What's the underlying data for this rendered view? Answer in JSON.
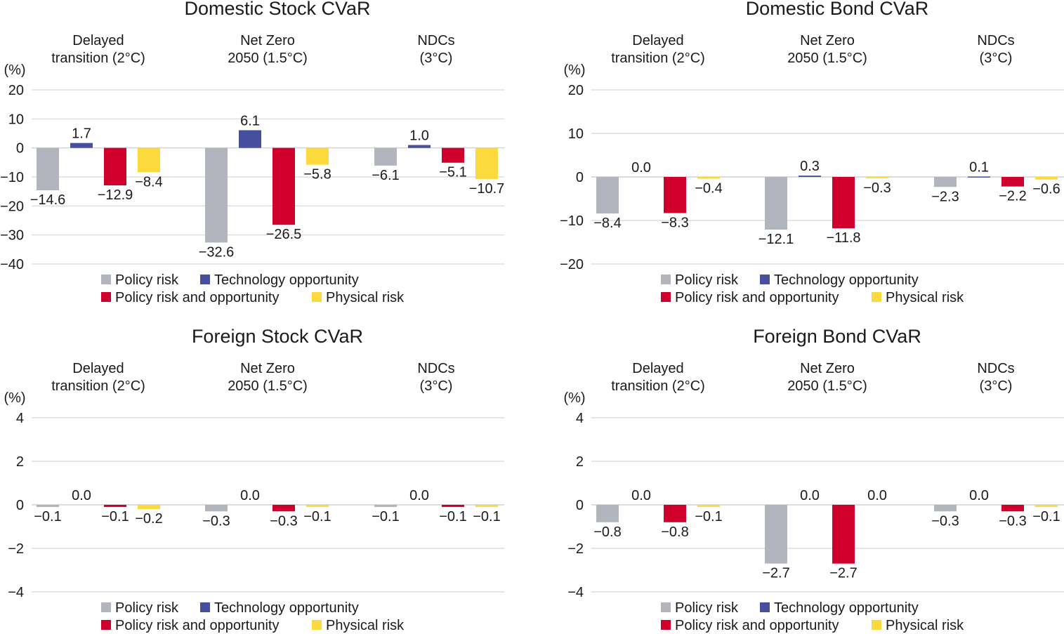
{
  "colors": {
    "Policy risk": "#b2b5bd",
    "Technology opportunity": "#454f9e",
    "Policy risk and opportunity": "#d0002d",
    "Physical risk": "#fcda3d"
  },
  "chart_data": [
    {
      "type": "bar",
      "title": "Domestic Stock CVaR",
      "ylabel": "(%)",
      "ylim": [
        -40,
        20
      ],
      "yticks": [
        20,
        10,
        0,
        -10,
        -20,
        -30,
        -40
      ],
      "grid": true,
      "legend": "bottom",
      "categories": [
        [
          "Delayed",
          "transition (2°C)"
        ],
        [
          "Net Zero",
          "2050 (1.5°C)"
        ],
        [
          "NDCs",
          "(3°C)"
        ]
      ],
      "series": [
        {
          "name": "Policy risk",
          "values": [
            -14.6,
            -32.6,
            -6.1
          ]
        },
        {
          "name": "Technology opportunity",
          "values": [
            1.7,
            6.1,
            1.0
          ]
        },
        {
          "name": "Policy risk and opportunity",
          "values": [
            -12.9,
            -26.5,
            -5.1
          ]
        },
        {
          "name": "Physical risk",
          "values": [
            -8.4,
            -5.8,
            -10.7
          ]
        }
      ]
    },
    {
      "type": "bar",
      "title": "Domestic Bond CVaR",
      "ylabel": "(%)",
      "ylim": [
        -20,
        20
      ],
      "yticks": [
        20,
        10,
        0,
        -10,
        -20
      ],
      "grid": true,
      "legend": "bottom",
      "categories": [
        [
          "Delayed",
          "transition (2°C)"
        ],
        [
          "Net Zero",
          "2050 (1.5°C)"
        ],
        [
          "NDCs",
          "(3°C)"
        ]
      ],
      "series": [
        {
          "name": "Policy risk",
          "values": [
            -8.4,
            -12.1,
            -2.3
          ]
        },
        {
          "name": "Technology opportunity",
          "values": [
            0.0,
            0.3,
            0.1
          ]
        },
        {
          "name": "Policy risk and opportunity",
          "values": [
            -8.3,
            -11.8,
            -2.2
          ]
        },
        {
          "name": "Physical risk",
          "values": [
            -0.4,
            -0.3,
            -0.6
          ]
        }
      ]
    },
    {
      "type": "bar",
      "title": "Foreign Stock CVaR",
      "ylabel": "(%)",
      "ylim": [
        -4,
        4
      ],
      "yticks": [
        4,
        2,
        0,
        -2,
        -4
      ],
      "grid": true,
      "legend": "bottom",
      "categories": [
        [
          "Delayed",
          "transition (2°C)"
        ],
        [
          "Net Zero",
          "2050 (1.5°C)"
        ],
        [
          "NDCs",
          "(3°C)"
        ]
      ],
      "series": [
        {
          "name": "Policy risk",
          "values": [
            -0.1,
            -0.3,
            -0.1
          ]
        },
        {
          "name": "Technology opportunity",
          "values": [
            0.0,
            0.0,
            0.0
          ]
        },
        {
          "name": "Policy risk and opportunity",
          "values": [
            -0.1,
            -0.3,
            -0.1
          ]
        },
        {
          "name": "Physical risk",
          "values": [
            -0.2,
            -0.1,
            -0.1
          ]
        }
      ]
    },
    {
      "type": "bar",
      "title": "Foreign Bond CVaR",
      "ylabel": "(%)",
      "ylim": [
        -4,
        4
      ],
      "yticks": [
        4,
        2,
        0,
        -2,
        -4
      ],
      "grid": true,
      "legend": "bottom",
      "categories": [
        [
          "Delayed",
          "transition (2°C)"
        ],
        [
          "Net Zero",
          "2050 (1.5°C)"
        ],
        [
          "NDCs",
          "(3°C)"
        ]
      ],
      "series": [
        {
          "name": "Policy risk",
          "values": [
            -0.8,
            -2.7,
            -0.3
          ]
        },
        {
          "name": "Technology opportunity",
          "values": [
            0.0,
            0.0,
            0.0
          ]
        },
        {
          "name": "Policy risk and opportunity",
          "values": [
            -0.8,
            -2.7,
            -0.3
          ]
        },
        {
          "name": "Physical risk",
          "values": [
            -0.1,
            0.0,
            -0.1
          ]
        }
      ]
    }
  ]
}
